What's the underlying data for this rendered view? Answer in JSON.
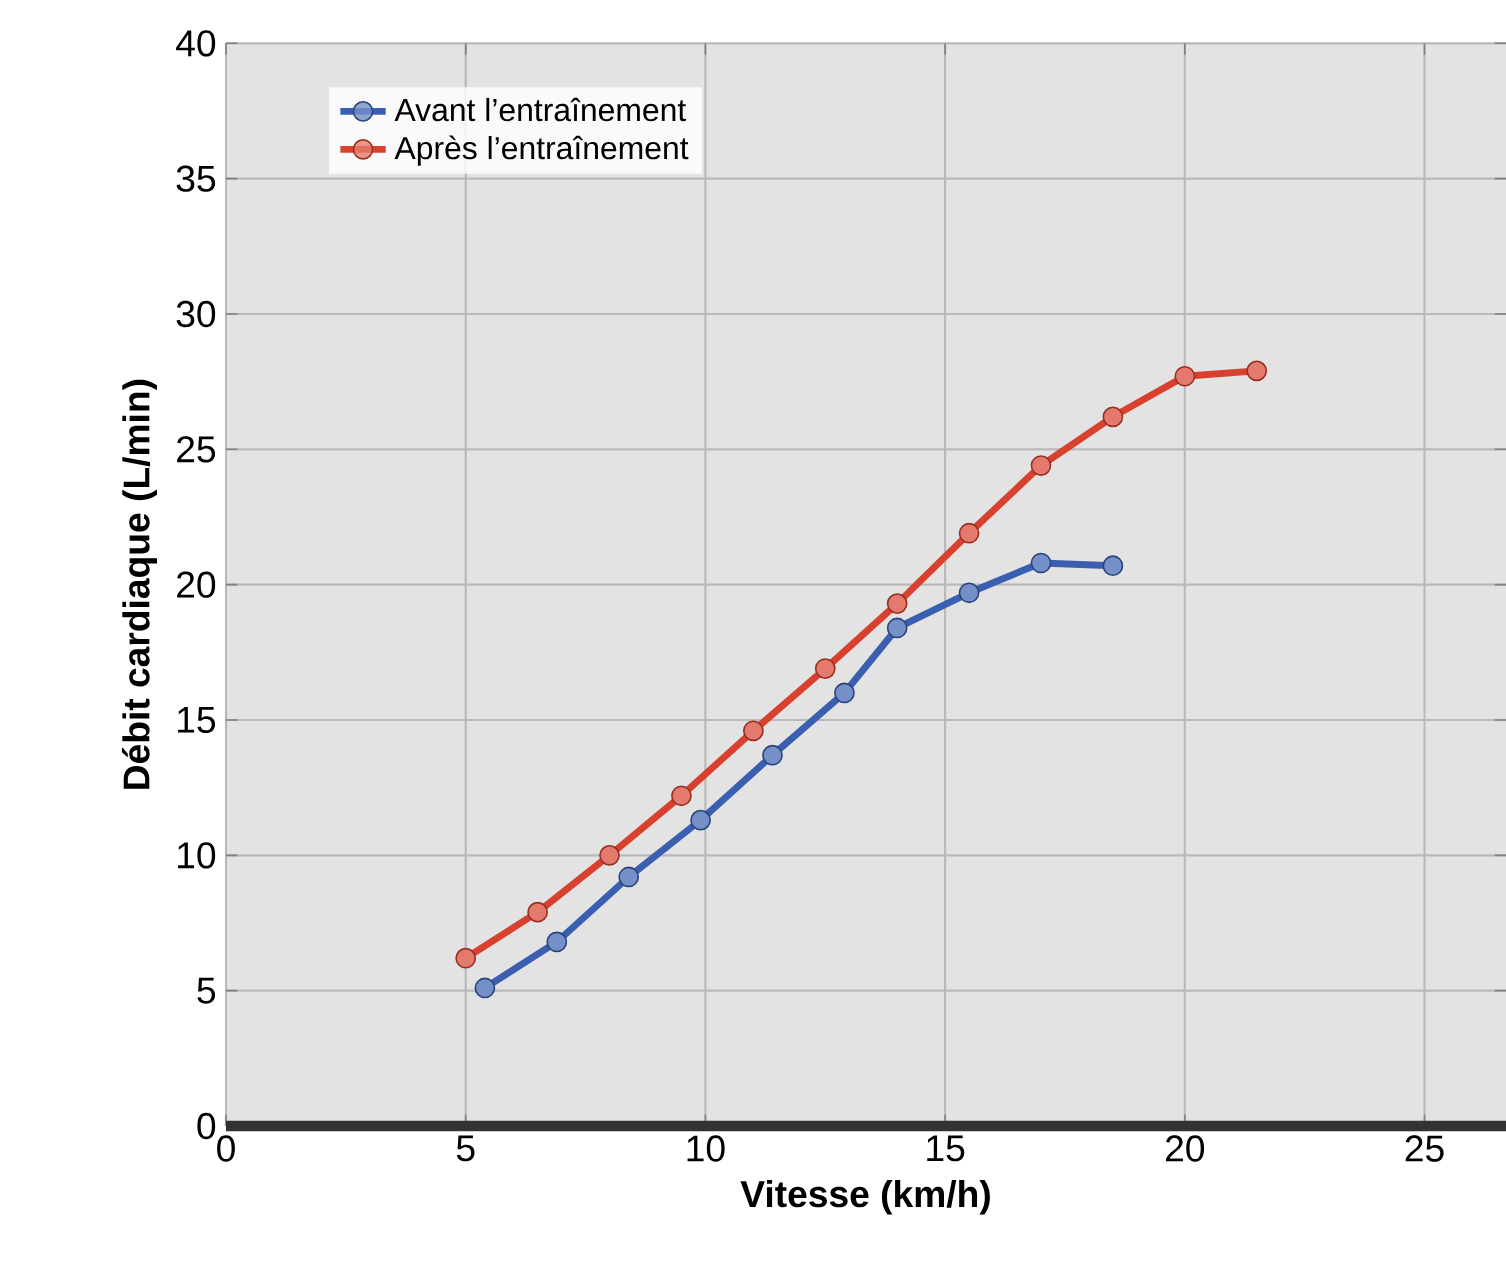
{
  "chart_data": {
    "type": "line",
    "xlabel": "Vitesse (km/h)",
    "ylabel": "Débit cardiaque (L/min)",
    "xlim": [
      0,
      26.7
    ],
    "ylim": [
      0,
      40
    ],
    "xticks": [
      0,
      5,
      10,
      15,
      20,
      25
    ],
    "yticks": [
      0,
      5,
      10,
      15,
      20,
      25,
      30,
      35,
      40
    ],
    "grid": true,
    "legend": "top left",
    "marker": "circle",
    "line_style": "solid",
    "series": [
      {
        "name": "Avant l’entraînement",
        "color": "#3a5fb0",
        "x": [
          5.4,
          6.9,
          8.4,
          9.9,
          11.4,
          12.9,
          14.0,
          15.5,
          17.0,
          18.5
        ],
        "values": [
          5.1,
          6.8,
          9.2,
          11.3,
          13.7,
          16.0,
          18.4,
          19.7,
          20.8,
          20.7
        ]
      },
      {
        "name": "Après l’entraînement",
        "color": "#d9412f",
        "x": [
          5.0,
          6.5,
          8.0,
          9.5,
          11.0,
          12.5,
          14.0,
          15.5,
          17.0,
          18.5,
          20.0,
          21.5
        ],
        "values": [
          6.2,
          7.9,
          10.0,
          12.2,
          14.6,
          16.9,
          19.3,
          21.9,
          24.4,
          26.2,
          27.7,
          27.9
        ]
      }
    ]
  }
}
